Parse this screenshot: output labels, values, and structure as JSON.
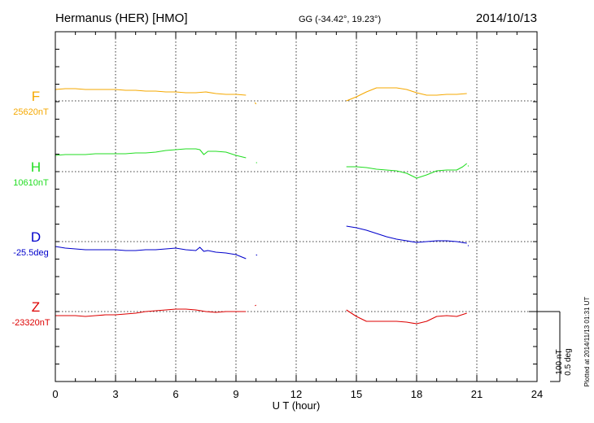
{
  "chart_data": {
    "type": "line",
    "title": "Hermanus (HER)  [HMO]",
    "coordinates": "GG (-34.42°,  19.23°)",
    "date": "2014/10/13",
    "xlabel": "U T (hour)",
    "xlim": [
      0,
      24
    ],
    "xticks": [
      "0",
      "3",
      "6",
      "9",
      "12",
      "15",
      "18",
      "21",
      "24"
    ],
    "grid": true,
    "scale_label_nt": "100 nT",
    "scale_label_deg": "0.5 deg",
    "plotted_note": "Plotted at 2014/11/13 01:31  UT",
    "series": [
      {
        "name": "F",
        "baseline": "25620nT",
        "color": "#f5a800",
        "segments": [
          {
            "x": [
              0.0,
              0.5,
              1.0,
              1.5,
              2.0,
              2.5,
              3.0,
              3.5,
              4.0,
              4.5,
              5.0,
              5.5,
              6.0,
              6.5,
              7.0,
              7.5,
              8.0,
              8.5,
              9.0,
              9.5
            ],
            "y": [
              14,
              15,
              15,
              14,
              14,
              14,
              14,
              13,
              13,
              12,
              12,
              11,
              11,
              10,
              10,
              11,
              9,
              8,
              8,
              7
            ]
          },
          {
            "x": [
              9.95,
              10.0
            ],
            "y": [
              -2,
              -4
            ]
          },
          {
            "x": [
              14.5,
              15.0,
              15.5,
              16.0,
              16.5,
              17.0,
              17.5,
              18.0,
              18.5,
              19.0,
              19.5,
              20.0,
              20.5
            ],
            "y": [
              0,
              5,
              11,
              16,
              16,
              16,
              14,
              10,
              7,
              7,
              8,
              8,
              9
            ]
          }
        ]
      },
      {
        "name": "H",
        "baseline": "10610nT",
        "color": "#22dd22",
        "segments": [
          {
            "x": [
              0.0,
              0.5,
              1.0,
              1.5,
              2.0,
              2.5,
              3.0,
              3.5,
              4.0,
              4.5,
              5.0,
              5.5,
              6.0,
              6.5,
              7.0,
              7.2,
              7.4,
              7.6,
              8.0,
              8.5,
              9.0,
              9.5
            ],
            "y": [
              20,
              21,
              21,
              21,
              22,
              22,
              22,
              22,
              23,
              23,
              24,
              26,
              27,
              28,
              28,
              27,
              21,
              25,
              25,
              24,
              20,
              17
            ]
          },
          {
            "x": [
              10.0,
              10.05
            ],
            "y": [
              11,
              11
            ]
          },
          {
            "x": [
              14.5,
              15.0,
              15.5,
              16.0,
              16.5,
              17.0,
              17.5,
              18.0,
              18.5,
              19.0,
              19.5,
              20.0,
              20.3,
              20.5
            ],
            "y": [
              6,
              6,
              5,
              3,
              2,
              1,
              -2,
              -8,
              -4,
              1,
              2,
              2,
              6,
              10
            ]
          },
          {
            "x": [
              20.55,
              20.6
            ],
            "y": [
              7,
              7
            ]
          }
        ]
      },
      {
        "name": "D",
        "baseline": "-25.5deg",
        "color": "#0000cc",
        "segments": [
          {
            "x": [
              0.0,
              0.5,
              1.0,
              1.5,
              2.0,
              2.5,
              3.0,
              3.5,
              4.0,
              4.5,
              5.0,
              5.5,
              6.0,
              6.5,
              7.0,
              7.2,
              7.4,
              7.6,
              8.0,
              8.5,
              9.0,
              9.5
            ],
            "y": [
              -6,
              -8,
              -9,
              -10,
              -10,
              -10,
              -10,
              -11,
              -11,
              -10,
              -10,
              -9,
              -8,
              -10,
              -11,
              -7,
              -12,
              -11,
              -13,
              -14,
              -16,
              -21
            ]
          },
          {
            "x": [
              10.0,
              10.05
            ],
            "y": [
              -16,
              -17
            ]
          },
          {
            "x": [
              14.5,
              15.0,
              15.5,
              16.0,
              16.5,
              17.0,
              17.5,
              18.0,
              18.5,
              19.0,
              19.5,
              20.0,
              20.5
            ],
            "y": [
              19,
              17,
              14,
              10,
              6,
              3,
              1,
              -1,
              0,
              1,
              1,
              0,
              -2
            ]
          },
          {
            "x": [
              20.55,
              20.6
            ],
            "y": [
              -5,
              -5
            ]
          }
        ]
      },
      {
        "name": "Z",
        "baseline": "-23320nT",
        "color": "#dd0000",
        "segments": [
          {
            "x": [
              0.0,
              0.5,
              1.0,
              1.5,
              2.0,
              2.5,
              3.0,
              3.5,
              4.0,
              4.5,
              5.0,
              5.5,
              6.0,
              6.5,
              7.0,
              7.5,
              8.0,
              8.5,
              9.0,
              9.5
            ],
            "y": [
              -5,
              -5,
              -5,
              -6,
              -5,
              -4,
              -4,
              -3,
              -2,
              0,
              1,
              2,
              3,
              3,
              2,
              0,
              -1,
              0,
              0,
              0
            ]
          },
          {
            "x": [
              9.95,
              10.0
            ],
            "y": [
              7,
              8
            ]
          },
          {
            "x": [
              14.5,
              15.0,
              15.5,
              16.0,
              16.5,
              17.0,
              17.5,
              18.0,
              18.5,
              19.0,
              19.5,
              20.0,
              20.5
            ],
            "y": [
              2,
              -6,
              -12,
              -12,
              -12,
              -12,
              -13,
              -15,
              -12,
              -6,
              -5,
              -6,
              -2
            ]
          }
        ]
      }
    ]
  }
}
